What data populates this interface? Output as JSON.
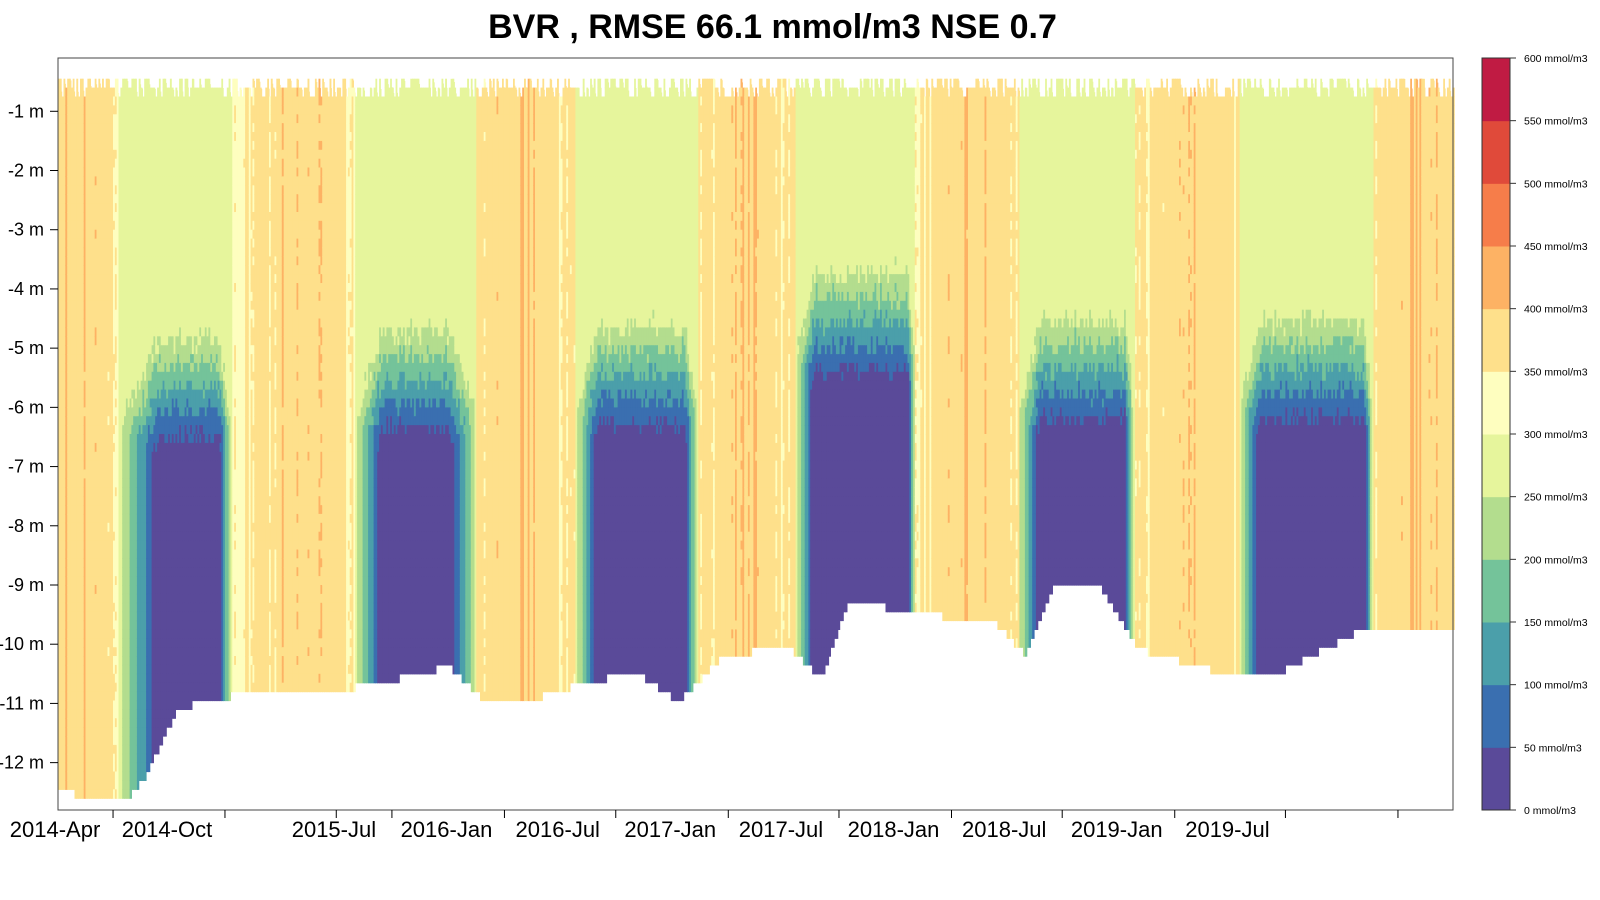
{
  "chart_data": {
    "type": "heatmap",
    "title": "BVR , RMSE 66.1 mmol/m3 NSE 0.7",
    "xlabel": "",
    "ylabel": "",
    "y_ticks": [
      "-1 m",
      "-2 m",
      "-3 m",
      "-4 m",
      "-5 m",
      "-6 m",
      "-7 m",
      "-8 m",
      "-9 m",
      "-10 m",
      "-11 m",
      "-12 m"
    ],
    "y_tick_values": [
      -1,
      -2,
      -3,
      -4,
      -5,
      -6,
      -7,
      -8,
      -9,
      -10,
      -11,
      -12
    ],
    "ylim": [
      -12.8,
      -0.1
    ],
    "x_ticks": [
      "2014-Apr",
      "2014-Oct",
      "",
      "2015-Jul",
      "2016-Jan",
      "2016-Jul",
      "2017-Jan",
      "2017-Jul",
      "2018-Jan",
      "2018-Jul",
      "2019-Jan",
      "2019-Jul",
      ""
    ],
    "x_tick_dates": [
      "2014-04-01",
      "2014-10-01",
      "2015-04-01",
      "2015-07-01",
      "2016-01-01",
      "2016-07-01",
      "2017-01-01",
      "2017-07-01",
      "2018-01-01",
      "2018-07-01",
      "2019-01-01",
      "2019-07-01",
      "2020-01-01"
    ],
    "xlim": [
      "2014-01-01",
      "2020-03-31"
    ],
    "colorbar": {
      "labels": [
        "600 mmol/m3",
        "550 mmol/m3",
        "500 mmol/m3",
        "450 mmol/m3",
        "400 mmol/m3",
        "350 mmol/m3",
        "300 mmol/m3",
        "250 mmol/m3",
        "200 mmol/m3",
        "150 mmol/m3",
        "100 mmol/m3",
        "50 mmol/m3",
        "0 mmol/m3"
      ],
      "levels": [
        0,
        50,
        100,
        150,
        200,
        250,
        300,
        350,
        400,
        450,
        500,
        550,
        600
      ],
      "colors": [
        "#5a4a99",
        "#3a6fb0",
        "#4b9faa",
        "#74c39a",
        "#b3dd8e",
        "#e6f59c",
        "#fefebf",
        "#fee08b",
        "#fdb264",
        "#f67d4a",
        "#e04a3a",
        "#c01b43"
      ]
    },
    "grid": false,
    "legend": "right colorbar",
    "stratification_periods": [
      {
        "start": "2014-04-10",
        "onset_full": "2014-06-15",
        "end_full": "2014-09-20",
        "end": "2014-10-10",
        "peak_top_depth": -4.6,
        "bottom_depth": -10.8
      },
      {
        "start": "2015-05-01",
        "onset_full": "2015-06-15",
        "end_full": "2015-10-01",
        "end": "2015-11-15",
        "peak_top_depth": -4.5,
        "bottom_depth": -10.4
      },
      {
        "start": "2016-04-25",
        "onset_full": "2016-06-01",
        "end_full": "2016-10-20",
        "end": "2016-11-10",
        "peak_top_depth": -4.4,
        "bottom_depth": -10.6
      },
      {
        "start": "2017-04-20",
        "onset_full": "2017-05-20",
        "end_full": "2017-10-20",
        "end": "2017-11-01",
        "peak_top_depth": -3.5,
        "bottom_depth": -9.3
      },
      {
        "start": "2018-04-20",
        "onset_full": "2018-05-25",
        "end_full": "2018-10-10",
        "end": "2018-10-25",
        "peak_top_depth": -4.3,
        "bottom_depth": -9.0
      },
      {
        "start": "2019-04-15",
        "onset_full": "2019-05-20",
        "end_full": "2019-11-05",
        "end": "2019-11-20",
        "peak_top_depth": -4.3,
        "bottom_depth": -9.8
      }
    ],
    "bottom_depth_profile": [
      {
        "date": "2014-01-01",
        "depth": -12.4
      },
      {
        "date": "2014-04-15",
        "depth": -12.6
      },
      {
        "date": "2014-05-20",
        "depth": -12.2
      },
      {
        "date": "2014-07-15",
        "depth": -11.0
      },
      {
        "date": "2014-10-10",
        "depth": -10.8
      },
      {
        "date": "2015-02-01",
        "depth": -10.8
      },
      {
        "date": "2015-06-01",
        "depth": -10.6
      },
      {
        "date": "2015-10-01",
        "depth": -10.3
      },
      {
        "date": "2015-12-01",
        "depth": -10.9
      },
      {
        "date": "2016-03-01",
        "depth": -10.8
      },
      {
        "date": "2016-05-01",
        "depth": -10.6
      },
      {
        "date": "2016-08-01",
        "depth": -10.4
      },
      {
        "date": "2016-10-10",
        "depth": -10.9
      },
      {
        "date": "2016-12-15",
        "depth": -10.2
      },
      {
        "date": "2017-04-01",
        "depth": -9.9
      },
      {
        "date": "2017-06-01",
        "depth": -10.5
      },
      {
        "date": "2017-07-15",
        "depth": -9.2
      },
      {
        "date": "2017-11-15",
        "depth": -9.4
      },
      {
        "date": "2018-03-15",
        "depth": -9.6
      },
      {
        "date": "2018-05-01",
        "depth": -10.1
      },
      {
        "date": "2018-06-15",
        "depth": -9.0
      },
      {
        "date": "2018-09-01",
        "depth": -9.0
      },
      {
        "date": "2018-11-01",
        "depth": -10.0
      },
      {
        "date": "2019-03-15",
        "depth": -10.4
      },
      {
        "date": "2019-06-01",
        "depth": -10.5
      },
      {
        "date": "2019-11-15",
        "depth": -9.6
      },
      {
        "date": "2020-03-31",
        "depth": -9.7
      }
    ]
  }
}
